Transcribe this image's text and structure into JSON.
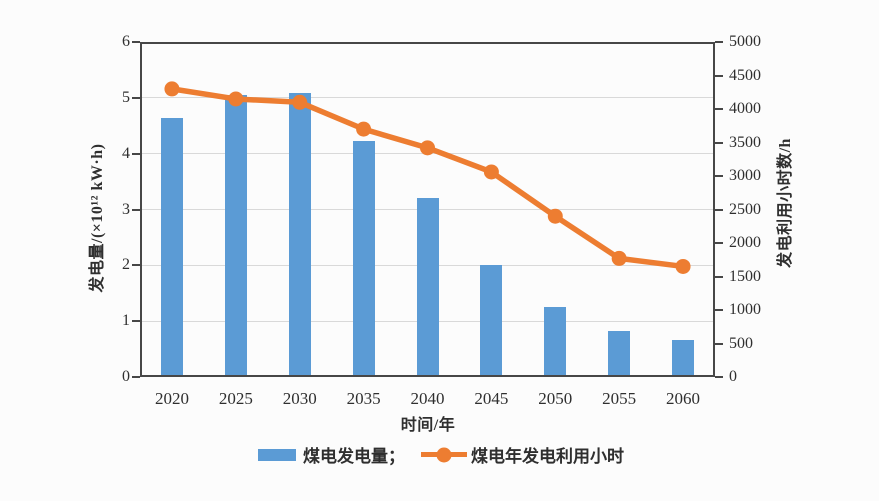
{
  "chart_data": {
    "type": "bar+line combo",
    "categories": [
      "2020",
      "2025",
      "2030",
      "2035",
      "2040",
      "2045",
      "2050",
      "2055",
      "2060"
    ],
    "series": [
      {
        "name": "煤电发电量",
        "type": "bar",
        "axis": "left",
        "color": "#5B9BD5",
        "values": [
          4.63,
          5.05,
          5.08,
          4.22,
          3.2,
          2.0,
          1.25,
          0.82,
          0.66
        ]
      },
      {
        "name": "煤电年发电利用小时",
        "type": "line",
        "axis": "right",
        "color": "#ED7D31",
        "values": [
          4300,
          4150,
          4100,
          3700,
          3420,
          3060,
          2400,
          1770,
          1650
        ]
      }
    ],
    "left_axis": {
      "label": "发电量/(×10¹² kW·h)",
      "min": 0,
      "max": 6,
      "step": 1,
      "ticks": [
        "0",
        "1",
        "2",
        "3",
        "4",
        "5",
        "6"
      ]
    },
    "right_axis": {
      "label": "发电利用小时数/h",
      "min": 0,
      "max": 5000,
      "step": 500,
      "ticks": [
        "0",
        "500",
        "1000",
        "1500",
        "2000",
        "2500",
        "3000",
        "3500",
        "4000",
        "4500",
        "5000"
      ]
    },
    "x_axis": {
      "label": "时间/年"
    },
    "legend": [
      {
        "label": "煤电发电量；",
        "swatch": "bar"
      },
      {
        "label": "煤电年发电利用小时",
        "swatch": "line"
      }
    ],
    "grid": "horizontal gridlines at left-axis values 1-5",
    "legend_position": "bottom-center",
    "frame_color": "#474747",
    "grid_color": "#d9d9d9"
  }
}
